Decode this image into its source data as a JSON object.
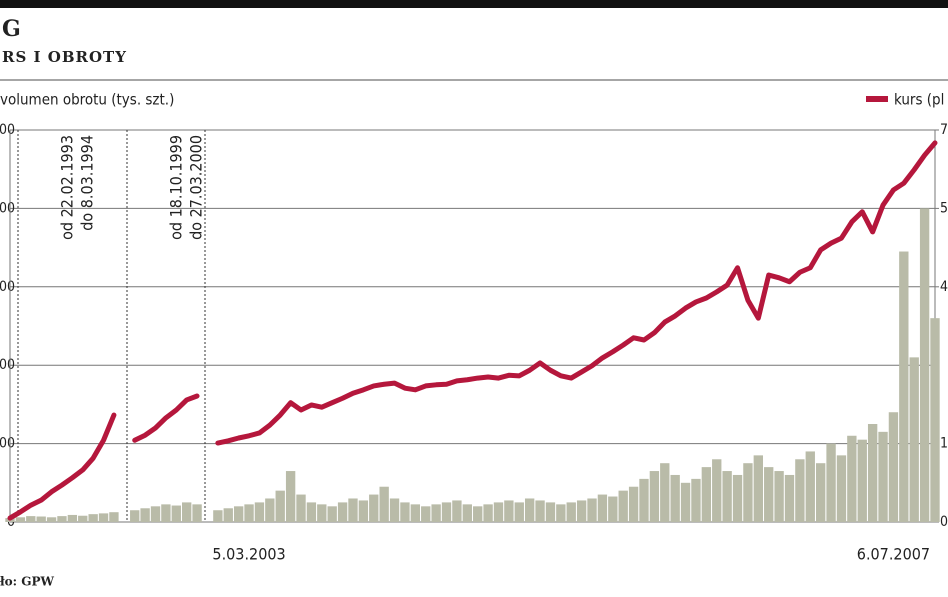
{
  "chart_data": {
    "type": "line_bar",
    "title": "G",
    "subtitle": "RS I OBROTY",
    "source": "ło: GPW",
    "categories": [
      null,
      null,
      null,
      null,
      null,
      null,
      null,
      null,
      null,
      null,
      null,
      null,
      null,
      null,
      null,
      null,
      null,
      null,
      null,
      null,
      null,
      null,
      null,
      "5.03.2003",
      null,
      null,
      null,
      null,
      null,
      null,
      null,
      null,
      null,
      null,
      null,
      null,
      null,
      null,
      null,
      null,
      null,
      null,
      null,
      null,
      null,
      null,
      null,
      null,
      null,
      null,
      null,
      null,
      null,
      null,
      null,
      null,
      null,
      null,
      null,
      null,
      null,
      null,
      null,
      null,
      null,
      null,
      null,
      null,
      null,
      null,
      null,
      null,
      null,
      null,
      null,
      null,
      null,
      null,
      null,
      null,
      null,
      null,
      null,
      null,
      null,
      "6.07.2007",
      null,
      null,
      null,
      null
    ],
    "series": [
      {
        "name": "volumen obrotu (tys. szt.)",
        "type": "bar",
        "color": "#b9bba8",
        "values": [
          10,
          12,
          15,
          14,
          12,
          15,
          18,
          16,
          20,
          22,
          25,
          0,
          30,
          35,
          40,
          45,
          42,
          50,
          45,
          0,
          30,
          35,
          40,
          45,
          50,
          60,
          80,
          130,
          70,
          50,
          45,
          40,
          50,
          60,
          55,
          70,
          90,
          60,
          50,
          45,
          40,
          45,
          50,
          55,
          45,
          40,
          45,
          50,
          55,
          50,
          60,
          55,
          50,
          45,
          50,
          55,
          60,
          70,
          65,
          80,
          90,
          110,
          130,
          150,
          120,
          100,
          110,
          140,
          160,
          130,
          120,
          150,
          170,
          140,
          130,
          120,
          160,
          180,
          150,
          200,
          170,
          220,
          210,
          250,
          230,
          280,
          690,
          420,
          800,
          520
        ]
      },
      {
        "name": "kurs (pl",
        "type": "line",
        "axis": "y2",
        "color": "#b5173c",
        "values": [
          0.7,
          1.8,
          3.0,
          3.9,
          5.4,
          6.6,
          7.9,
          9.3,
          11.4,
          14.6,
          19.1,
          null,
          14.6,
          15.5,
          16.8,
          18.6,
          20,
          21.8,
          22.5,
          null,
          14.1,
          14.5,
          15.0,
          15.4,
          15.9,
          17.3,
          19.1,
          21.3,
          20.0,
          20.9,
          20.5,
          21.3,
          22.1,
          23.0,
          23.6,
          24.3,
          24.6,
          24.8,
          23.9,
          23.6,
          24.3,
          24.5,
          24.6,
          25.2,
          25.4,
          25.7,
          25.9,
          25.7,
          26.2,
          26.1,
          27.1,
          28.4,
          27.1,
          26.1,
          25.7,
          26.8,
          27.9,
          29.3,
          30.4,
          31.6,
          32.9,
          32.5,
          33.8,
          35.7,
          36.8,
          38.2,
          39.3,
          40.0,
          41.1,
          42.3,
          45.4,
          39.6,
          36.4,
          44.1,
          43.6,
          42.9,
          44.6,
          45.4,
          48.6,
          49.8,
          50.7,
          53.6,
          55.4,
          51.8,
          56.6,
          59.3,
          60.5,
          62.9,
          65.5,
          67.7
        ]
      }
    ],
    "ylim": [
      0,
      1000
    ],
    "yticks": [
      0,
      {
        "value": 200,
        "label": "00"
      },
      {
        "value": 400,
        "label": "00"
      },
      {
        "value": 600,
        "label": "00"
      },
      {
        "value": 800,
        "label": "00"
      },
      {
        "value": 1000,
        "label": "00"
      }
    ],
    "y2lim": [
      0,
      70
    ],
    "y2ticks": [
      0,
      {
        "value": 14,
        "label": "1"
      },
      {
        "value": 42,
        "label": "4"
      },
      {
        "value": 56,
        "label": "5"
      },
      {
        "value": 70,
        "label": "7"
      }
    ],
    "annotations": [
      [
        "od 22.02.1993",
        "do 8.03.1994"
      ],
      [
        "od 18.10.1999",
        "do 27.03.2000"
      ]
    ],
    "grid": true
  }
}
